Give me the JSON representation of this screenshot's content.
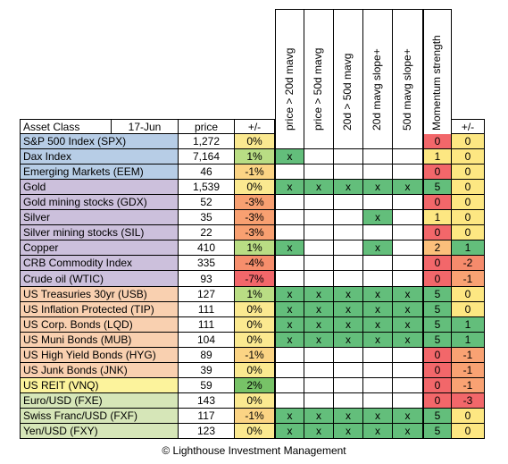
{
  "header": {
    "asset_class": "Asset Class",
    "date": "17-Jun",
    "price": "price",
    "change": "+/-",
    "signals": [
      "price > 20d mavg",
      "price > 50d mavg",
      "20d > 50d mavg",
      "20d mavg slope+",
      "50d mavg slope+"
    ],
    "momentum": "Momentum strength",
    "momentum_change": "+/-"
  },
  "rows": [
    {
      "name": "S&P 500 Index (SPX)",
      "price": "1,272",
      "change": "0%",
      "signals": [
        "",
        "",
        "",
        "",
        ""
      ],
      "momentum": "0",
      "mchange": "0",
      "group": "equity",
      "pct": "zero",
      "mom": "red",
      "mch": "zero"
    },
    {
      "name": "Dax Index",
      "price": "7,164",
      "change": "1%",
      "signals": [
        "x",
        "",
        "",
        "",
        ""
      ],
      "momentum": "1",
      "mchange": "0",
      "group": "equity",
      "pct": "pos1",
      "mom": "yellow",
      "mch": "zero"
    },
    {
      "name": "Emerging Markets (EEM)",
      "price": "46",
      "change": "-1%",
      "signals": [
        "",
        "",
        "",
        "",
        ""
      ],
      "momentum": "0",
      "mchange": "0",
      "group": "equity",
      "pct": "neg1",
      "mom": "red",
      "mch": "zero"
    },
    {
      "name": "Gold",
      "price": "1,539",
      "change": "0%",
      "signals": [
        "x",
        "x",
        "x",
        "x",
        "x"
      ],
      "momentum": "5",
      "mchange": "0",
      "group": "metal",
      "pct": "zero",
      "mom": "green",
      "mch": "zero"
    },
    {
      "name": "Gold mining stocks (GDX)",
      "price": "52",
      "change": "-3%",
      "signals": [
        "",
        "",
        "",
        "",
        ""
      ],
      "momentum": "0",
      "mchange": "0",
      "group": "metal",
      "pct": "neg3",
      "mom": "red",
      "mch": "zero"
    },
    {
      "name": "Silver",
      "price": "35",
      "change": "-3%",
      "signals": [
        "",
        "",
        "",
        "x",
        ""
      ],
      "momentum": "1",
      "mchange": "0",
      "group": "metal",
      "pct": "neg3",
      "mom": "yellow",
      "mch": "zero"
    },
    {
      "name": "Silver mining stocks (SIL)",
      "price": "22",
      "change": "-3%",
      "signals": [
        "",
        "",
        "",
        "",
        ""
      ],
      "momentum": "0",
      "mchange": "0",
      "group": "metal",
      "pct": "neg3",
      "mom": "red",
      "mch": "zero"
    },
    {
      "name": "Copper",
      "price": "410",
      "change": "1%",
      "signals": [
        "x",
        "",
        "",
        "x",
        ""
      ],
      "momentum": "2",
      "mchange": "1",
      "group": "metal",
      "pct": "pos1",
      "mom": "orange",
      "mch": "pos"
    },
    {
      "name": "CRB Commodity Index",
      "price": "335",
      "change": "-4%",
      "signals": [
        "",
        "",
        "",
        "",
        ""
      ],
      "momentum": "0",
      "mchange": "-2",
      "group": "metal",
      "pct": "neg4",
      "mom": "red",
      "mch": "neg2"
    },
    {
      "name": "Crude oil (WTIC)",
      "price": "93",
      "change": "-7%",
      "signals": [
        "",
        "",
        "",
        "",
        ""
      ],
      "momentum": "0",
      "mchange": "-1",
      "group": "metal",
      "pct": "neg7",
      "mom": "red",
      "mch": "neg1"
    },
    {
      "name": "US Treasuries 30yr (USB)",
      "price": "127",
      "change": "1%",
      "signals": [
        "x",
        "x",
        "x",
        "x",
        "x"
      ],
      "momentum": "5",
      "mchange": "0",
      "group": "bond",
      "pct": "pos1",
      "mom": "green",
      "mch": "zero"
    },
    {
      "name": "US Inflation Protected (TIP)",
      "price": "111",
      "change": "0%",
      "signals": [
        "x",
        "x",
        "x",
        "x",
        "x"
      ],
      "momentum": "5",
      "mchange": "0",
      "group": "bond",
      "pct": "zero",
      "mom": "green",
      "mch": "zero"
    },
    {
      "name": "US Corp. Bonds (LQD)",
      "price": "111",
      "change": "0%",
      "signals": [
        "x",
        "x",
        "x",
        "x",
        "x"
      ],
      "momentum": "5",
      "mchange": "1",
      "group": "bond",
      "pct": "zero",
      "mom": "green",
      "mch": "pos"
    },
    {
      "name": "US Muni Bonds (MUB)",
      "price": "104",
      "change": "0%",
      "signals": [
        "x",
        "x",
        "x",
        "x",
        "x"
      ],
      "momentum": "5",
      "mchange": "1",
      "group": "bond",
      "pct": "zero",
      "mom": "green",
      "mch": "pos"
    },
    {
      "name": "US High Yield Bonds (HYG)",
      "price": "89",
      "change": "-1%",
      "signals": [
        "",
        "",
        "",
        "",
        ""
      ],
      "momentum": "0",
      "mchange": "-1",
      "group": "bond",
      "pct": "neg1",
      "mom": "red",
      "mch": "neg1"
    },
    {
      "name": "US Junk Bonds (JNK)",
      "price": "39",
      "change": "0%",
      "signals": [
        "",
        "",
        "",
        "",
        ""
      ],
      "momentum": "0",
      "mchange": "-1",
      "group": "bond",
      "pct": "zero",
      "mom": "red",
      "mch": "neg1"
    },
    {
      "name": "US REIT (VNQ)",
      "price": "59",
      "change": "2%",
      "signals": [
        "",
        "",
        "",
        "",
        ""
      ],
      "momentum": "0",
      "mchange": "-1",
      "group": "reit",
      "pct": "pos2",
      "mom": "red",
      "mch": "neg1"
    },
    {
      "name": "Euro/USD (FXE)",
      "price": "143",
      "change": "0%",
      "signals": [
        "",
        "",
        "",
        "",
        ""
      ],
      "momentum": "0",
      "mchange": "-3",
      "group": "fx",
      "pct": "zero",
      "mom": "red",
      "mch": "neg3"
    },
    {
      "name": "Swiss Franc/USD (FXF)",
      "price": "117",
      "change": "-1%",
      "signals": [
        "x",
        "x",
        "x",
        "x",
        "x"
      ],
      "momentum": "5",
      "mchange": "0",
      "group": "fx",
      "pct": "neg1",
      "mom": "green",
      "mch": "zero"
    },
    {
      "name": "Yen/USD (FXY)",
      "price": "123",
      "change": "0%",
      "signals": [
        "x",
        "x",
        "x",
        "x",
        "x"
      ],
      "momentum": "5",
      "mchange": "0",
      "group": "fx",
      "pct": "zero",
      "mom": "green",
      "mch": "zero"
    }
  ],
  "footer": "© Lighthouse Investment Management",
  "colors": {
    "group": {
      "equity": "#b7cde6",
      "metal": "#ccc0dc",
      "bond": "#f9d0b0",
      "reit": "#fcf39c",
      "fx": "#d6e6b8"
    },
    "pct": {
      "zero": "#fbe990",
      "pos1": "#b9dd84",
      "pos2": "#77c267",
      "neg1": "#fbd484",
      "neg3": "#f8a071",
      "neg4": "#f68e6c",
      "neg7": "#f2676a"
    },
    "mom": {
      "red": "#f2676a",
      "yellow": "#fde782",
      "orange": "#fbbf7b",
      "green": "#63be7b"
    },
    "mch": {
      "zero": "#fde782",
      "pos": "#63be7b",
      "neg1": "#f9a273",
      "neg2": "#f58b6c",
      "neg3": "#f2676a"
    },
    "signal_on": "#63be7b"
  }
}
